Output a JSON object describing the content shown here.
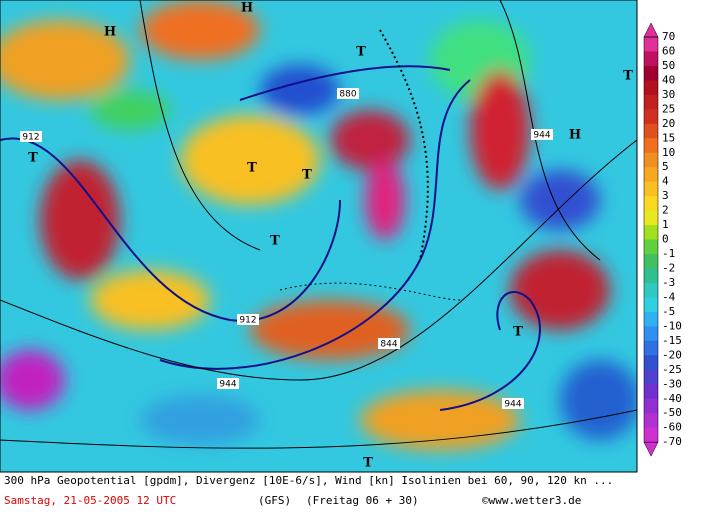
{
  "map": {
    "labels": [
      "H",
      "H",
      "T",
      "T",
      "T",
      "T",
      "T",
      "H",
      "T",
      "T",
      "T"
    ],
    "contour_labels": [
      "912",
      "880",
      "944",
      "912",
      "844",
      "944",
      "944"
    ]
  },
  "legend": {
    "levels": [
      70,
      60,
      50,
      40,
      30,
      25,
      20,
      15,
      10,
      5,
      4,
      3,
      2,
      1,
      0,
      -1,
      -2,
      -3,
      -4,
      -5,
      -10,
      -15,
      -20,
      -25,
      -30,
      -40,
      -50,
      -60,
      -70
    ],
    "colors": [
      "#e0309a",
      "#c01060",
      "#a00030",
      "#b01020",
      "#c02020",
      "#d03020",
      "#e05020",
      "#f07020",
      "#f09020",
      "#f8a820",
      "#f8c020",
      "#f8d820",
      "#e8e820",
      "#a0e020",
      "#60d040",
      "#40c060",
      "#30c090",
      "#30c8c0",
      "#30d0e0",
      "#30b0f0",
      "#3090f0",
      "#3070e0",
      "#3050d0",
      "#5040d0",
      "#7030d0",
      "#9030d0",
      "#b030d0",
      "#d030d0"
    ]
  },
  "footer": {
    "line1": "300 hPa Geopotential [gpdm], Divergenz [10E-6/s], Wind [kn] Isolinien bei 60, 90, 120 kn ...",
    "date": "Samstag, 21-05-2005  12 UTC",
    "model": "(GFS)",
    "run": "(Freitag 06 + 30)",
    "copyright": "©www.wetter3.de"
  }
}
